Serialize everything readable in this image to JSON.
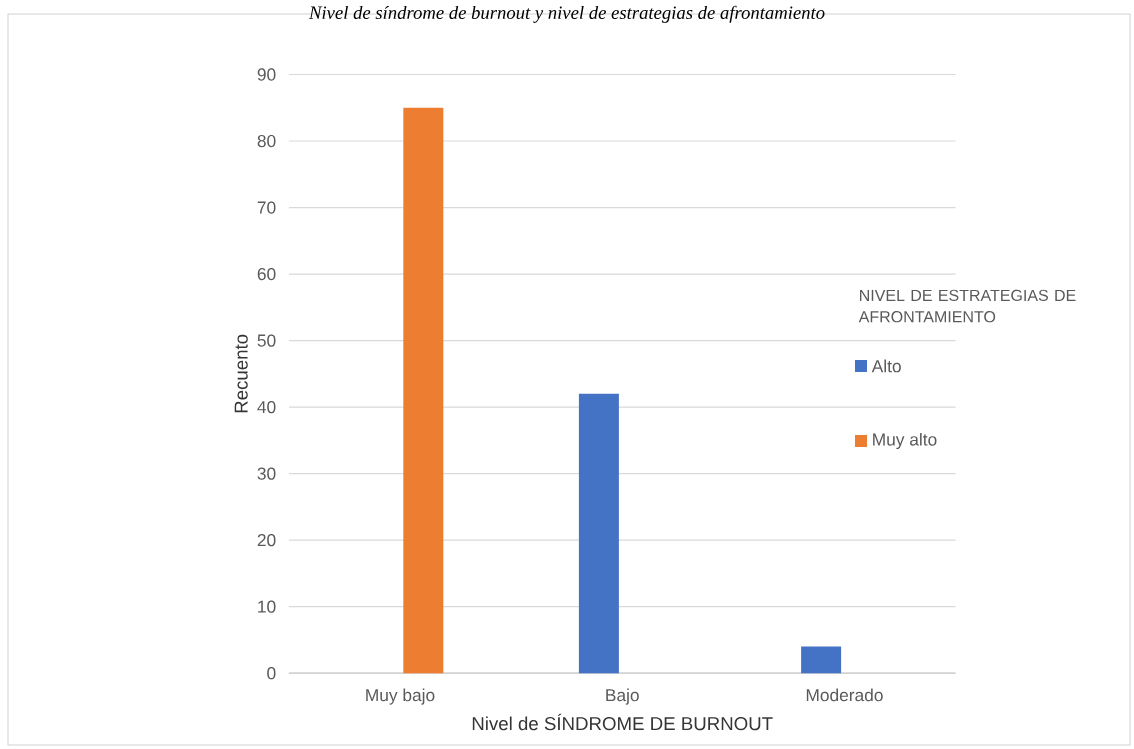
{
  "chart_data": {
    "type": "bar",
    "title": "Nivel de síndrome de burnout y nivel de estrategias de afrontamiento",
    "xlabel": "Nivel de SÍNDROME DE BURNOUT",
    "ylabel": "Recuento",
    "legend_title": "NIVEL DE ESTRATEGIAS DE AFRONTAMIENTO",
    "categories": [
      "Muy bajo",
      "Bajo",
      "Moderado"
    ],
    "series": [
      {
        "name": "Alto",
        "color": "#4472c4",
        "values": [
          null,
          42,
          4
        ]
      },
      {
        "name": "Muy alto",
        "color": "#ed7d31",
        "values": [
          85,
          null,
          null
        ]
      }
    ],
    "ylim": [
      0,
      90
    ],
    "yticks": [
      0,
      10,
      20,
      30,
      40,
      50,
      60,
      70,
      80,
      90
    ],
    "grid": "y",
    "legend": "right"
  }
}
